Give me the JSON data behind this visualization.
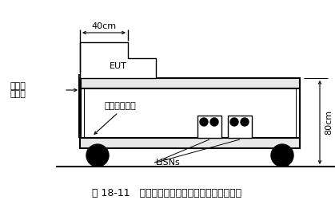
{
  "title": "图 18-11   非金属试验车上的传导发射预测量配置",
  "label_vertical_1": "垂直接",
  "label_vertical_2": "地平面",
  "label_horizontal": "水平接地平面",
  "label_eut": "EUT",
  "label_lisns": "LISNs",
  "label_40cm": "40cm",
  "label_80cm": "80cm",
  "bg_color": "#ffffff",
  "line_color": "#000000",
  "font_size_title": 9,
  "font_size_label": 8
}
